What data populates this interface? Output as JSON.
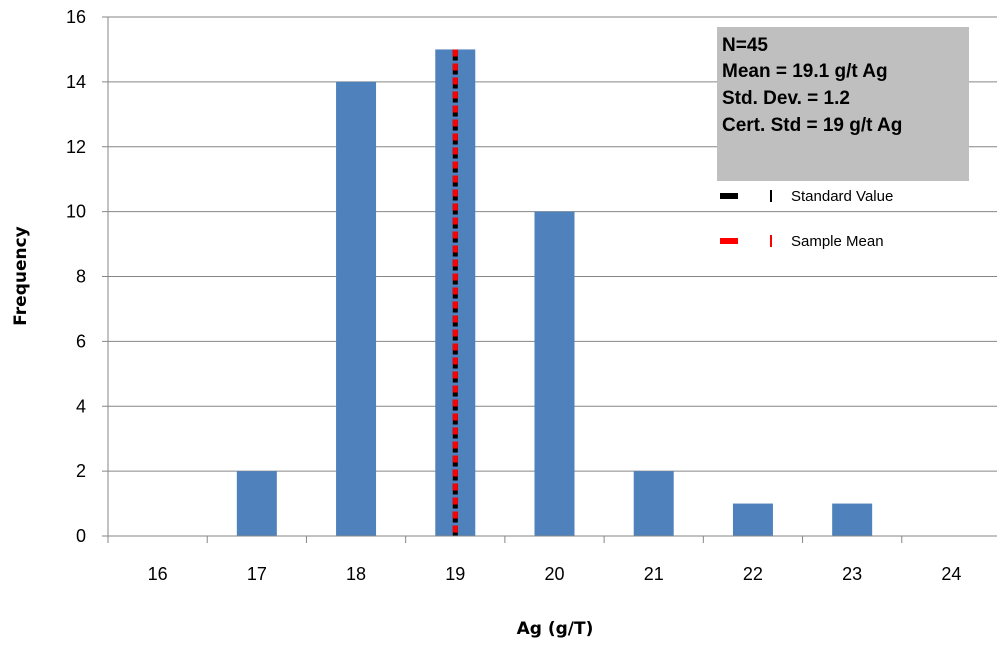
{
  "chart_data": {
    "type": "bar",
    "xlabel": "Ag (g/T)",
    "ylabel": "Frequency",
    "categories": [
      "16",
      "17",
      "18",
      "19",
      "20",
      "21",
      "22",
      "23",
      "24"
    ],
    "values": [
      0,
      2,
      14,
      15,
      10,
      2,
      1,
      1,
      0
    ],
    "ylim": [
      0,
      16
    ],
    "yticks": [
      0,
      2,
      4,
      6,
      8,
      10,
      12,
      14,
      16
    ],
    "grid": true,
    "bar_color": "#4F81BD",
    "stats_box": {
      "lines": [
        "N=45",
        "Mean = 19.1 g/t Ag",
        "Std. Dev. = 1.2",
        "Cert. Std = 19 g/t Ag"
      ],
      "background": "#BFBFBF"
    },
    "reference_lines": [
      {
        "name": "Standard Value",
        "x": 19,
        "color": "#000000",
        "style": "dashed"
      },
      {
        "name": "Sample Mean",
        "x": 19,
        "color": "#FF0000",
        "style": "dashed"
      }
    ],
    "legend_position": "top-right"
  }
}
